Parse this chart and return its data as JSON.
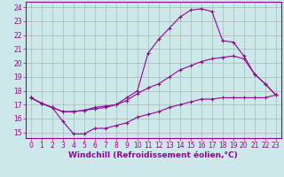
{
  "xlabel": "Windchill (Refroidissement éolien,°C)",
  "background_color": "#cce8e8",
  "line_color": "#990099",
  "grid_color": "#aaaaaa",
  "xlim": [
    -0.5,
    23.5
  ],
  "ylim": [
    14.6,
    24.4
  ],
  "xticks": [
    0,
    1,
    2,
    3,
    4,
    5,
    6,
    7,
    8,
    9,
    10,
    11,
    12,
    13,
    14,
    15,
    16,
    17,
    18,
    19,
    20,
    21,
    22,
    23
  ],
  "yticks": [
    15,
    16,
    17,
    18,
    19,
    20,
    21,
    22,
    23,
    24
  ],
  "tick_fontsize": 5.5,
  "xlabel_fontsize": 6.5,
  "marker": "+",
  "lines": [
    {
      "x": [
        0,
        1,
        2,
        3,
        4,
        5,
        6,
        7,
        8,
        9,
        10,
        11,
        12,
        13,
        14,
        15,
        16,
        17,
        18,
        19,
        20,
        21,
        22,
        23
      ],
      "y": [
        17.5,
        17.1,
        16.8,
        15.8,
        14.9,
        14.9,
        15.3,
        15.3,
        15.5,
        15.7,
        16.1,
        16.3,
        16.5,
        16.8,
        17.0,
        17.2,
        17.4,
        17.4,
        17.5,
        17.5,
        17.5,
        17.5,
        17.5,
        17.7
      ]
    },
    {
      "x": [
        0,
        1,
        2,
        3,
        4,
        5,
        6,
        7,
        8,
        9,
        10,
        11,
        12,
        13,
        14,
        15,
        16,
        17,
        18,
        19,
        20,
        21,
        22,
        23
      ],
      "y": [
        17.5,
        17.1,
        16.8,
        16.5,
        16.5,
        16.6,
        16.7,
        16.8,
        17.0,
        17.3,
        17.8,
        18.2,
        18.5,
        19.0,
        19.5,
        19.8,
        20.1,
        20.3,
        20.4,
        20.5,
        20.3,
        19.2,
        18.5,
        17.7
      ]
    },
    {
      "x": [
        0,
        1,
        2,
        3,
        4,
        5,
        6,
        7,
        8,
        9,
        10,
        11,
        12,
        13,
        14,
        15,
        16,
        17,
        18,
        19,
        20,
        21,
        22,
        23
      ],
      "y": [
        17.5,
        17.1,
        16.8,
        16.5,
        16.5,
        16.6,
        16.8,
        16.9,
        17.0,
        17.5,
        18.0,
        20.7,
        21.7,
        22.5,
        23.3,
        23.8,
        23.9,
        23.7,
        21.6,
        21.5,
        20.5,
        19.2,
        18.5,
        17.7
      ]
    }
  ]
}
